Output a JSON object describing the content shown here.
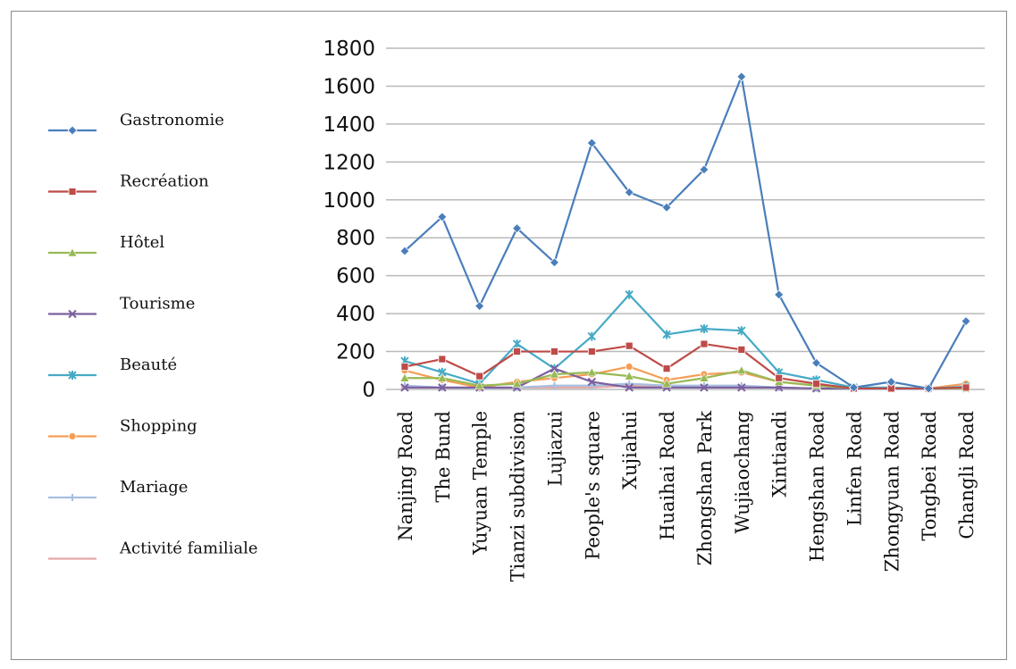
{
  "chart_data": {
    "type": "line",
    "title": "",
    "xlabel": "",
    "ylabel": "",
    "ylim": [
      0,
      1800
    ],
    "yticks": [
      0,
      200,
      400,
      600,
      800,
      1000,
      1200,
      1400,
      1600,
      1800
    ],
    "grid": true,
    "legend_position": "left",
    "categories": [
      "Nanjing Road",
      "The Bund",
      "Yuyuan Temple",
      "Tianzi subdivision",
      "Lujiazui",
      "People's square",
      "Xujiahui",
      "Huaihai Road",
      "Zhongshan Park",
      "Wujiaochang",
      "Xintiandi",
      "Hengshan Road",
      "Linfen Road",
      "Zhongyuan Road",
      "Tongbei Road",
      "Changli Road"
    ],
    "series": [
      {
        "name": "Gastronomie",
        "color": "#4a7ebb",
        "marker": "diamond",
        "values": [
          730,
          910,
          440,
          850,
          670,
          1300,
          1040,
          960,
          1160,
          1650,
          500,
          140,
          10,
          40,
          5,
          360
        ]
      },
      {
        "name": "Recréation",
        "color": "#be4b48",
        "marker": "square",
        "values": [
          120,
          160,
          70,
          200,
          200,
          200,
          230,
          110,
          240,
          210,
          60,
          30,
          5,
          5,
          5,
          10
        ]
      },
      {
        "name": "Hôtel",
        "color": "#98b954",
        "marker": "triangle",
        "values": [
          60,
          60,
          20,
          30,
          80,
          90,
          70,
          30,
          60,
          100,
          40,
          20,
          5,
          5,
          5,
          5
        ]
      },
      {
        "name": "Tourisme",
        "color": "#7d60a0",
        "marker": "x",
        "values": [
          10,
          10,
          10,
          10,
          110,
          40,
          10,
          10,
          10,
          10,
          10,
          5,
          5,
          5,
          5,
          5
        ]
      },
      {
        "name": "Beauté",
        "color": "#46aac5",
        "marker": "star",
        "values": [
          150,
          90,
          30,
          240,
          110,
          280,
          500,
          290,
          320,
          310,
          90,
          50,
          10,
          10,
          5,
          15
        ]
      },
      {
        "name": "Shopping",
        "color": "#f59d56",
        "marker": "circle",
        "values": [
          100,
          50,
          10,
          40,
          60,
          80,
          120,
          50,
          80,
          90,
          40,
          20,
          5,
          5,
          5,
          30
        ]
      },
      {
        "name": "Mariage",
        "color": "#a6bfe0",
        "marker": "plus",
        "values": [
          20,
          10,
          5,
          10,
          20,
          20,
          30,
          20,
          20,
          20,
          10,
          5,
          2,
          2,
          2,
          5
        ]
      },
      {
        "name": "Activité familiale",
        "color": "#e6a8a7",
        "marker": "dash",
        "values": [
          10,
          10,
          5,
          10,
          10,
          10,
          20,
          10,
          10,
          10,
          10,
          5,
          2,
          2,
          2,
          5
        ]
      }
    ]
  }
}
